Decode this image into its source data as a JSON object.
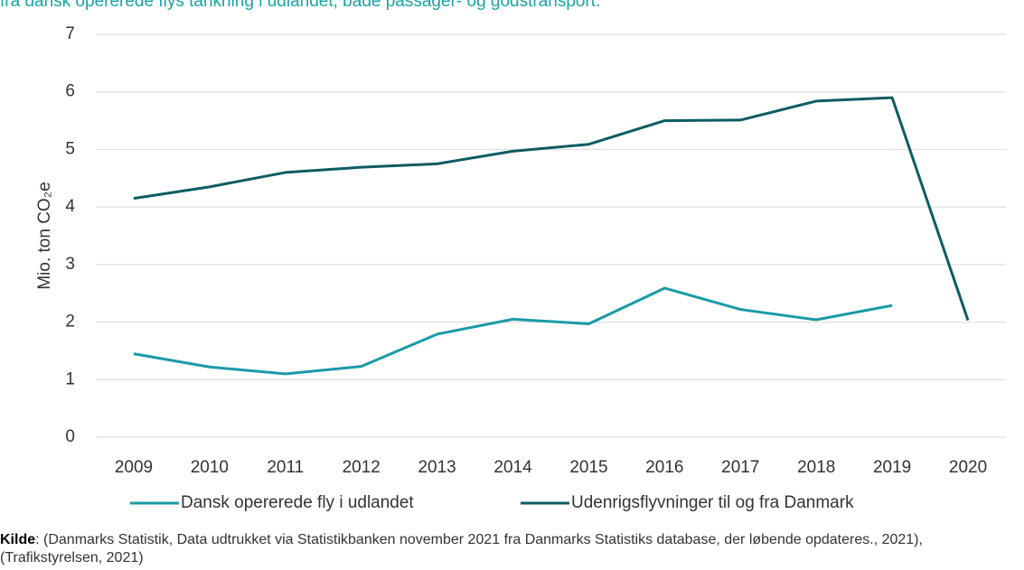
{
  "chart_data": {
    "type": "line",
    "title": "fra dansk opererede flys tankning i udlandet, både passager- og godstransport.",
    "y_label": "Mio. ton CO₂e",
    "categories": [
      "2009",
      "2010",
      "2011",
      "2012",
      "2013",
      "2014",
      "2015",
      "2016",
      "2017",
      "2018",
      "2019",
      "2020"
    ],
    "series": [
      {
        "name": "Dansk opererede fly i udlandet",
        "color": "#1a9aa8",
        "values": [
          1.45,
          1.22,
          1.1,
          1.23,
          1.79,
          2.05,
          1.97,
          2.59,
          2.22,
          2.04,
          2.29,
          null
        ]
      },
      {
        "name": "Udenrigsflyvninger til og fra Danmark",
        "color": "#0d5c63",
        "values": [
          4.15,
          4.35,
          4.6,
          4.69,
          4.75,
          4.97,
          5.09,
          5.5,
          5.51,
          5.84,
          5.9,
          2.03
        ]
      }
    ],
    "ylim": [
      0,
      7
    ],
    "yticks": [
      0,
      1,
      2,
      3,
      4,
      5,
      6,
      7
    ],
    "grid": true,
    "legend": "bottom",
    "source_label": "Kilde",
    "source_text": ": (Danmarks Statistik, Data udtrukket via Statistikbanken november 2021 fra Danmarks Statistiks database, der løbende opdateres., 2021), (Trafikstyrelsen, 2021)"
  }
}
